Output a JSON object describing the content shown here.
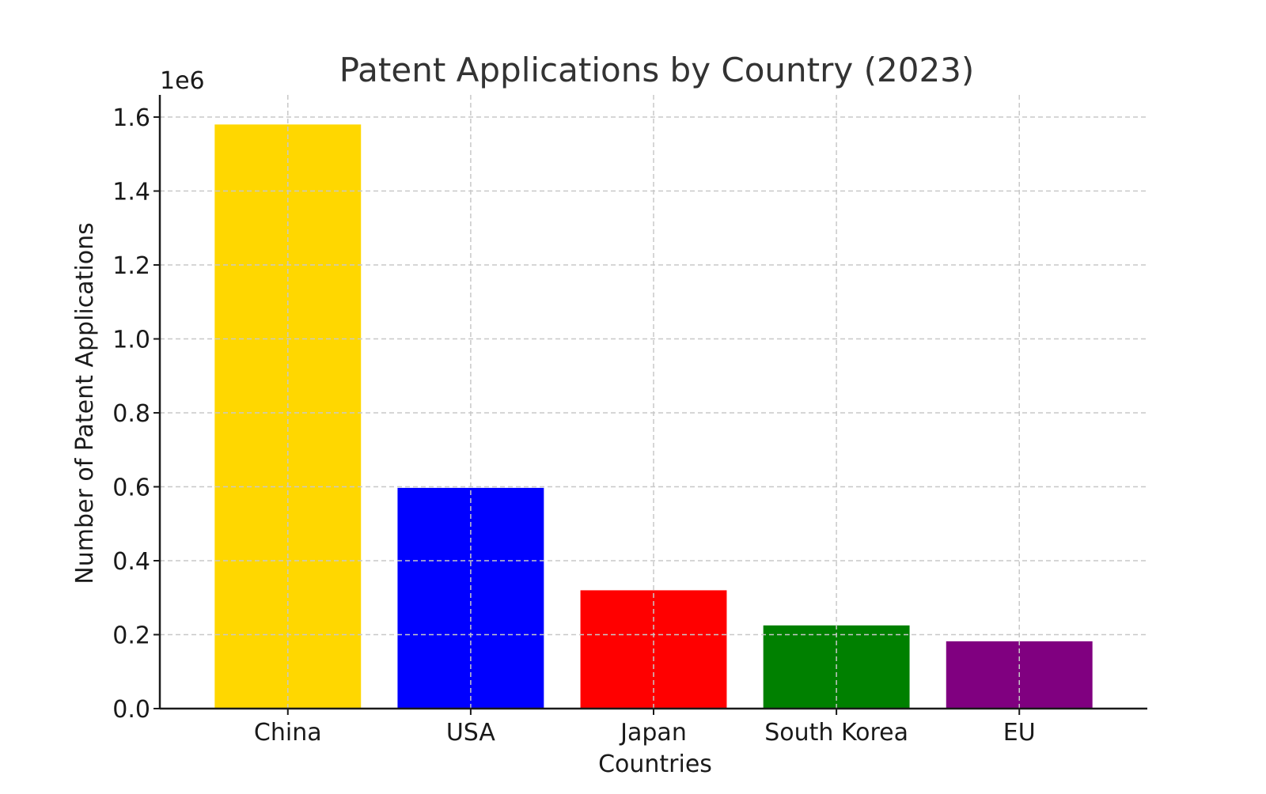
{
  "chart_data": {
    "type": "bar",
    "title": "Patent Applications by Country (2023)",
    "xlabel": "Countries",
    "ylabel": "Number of Patent Applications",
    "y_offset_label": "1e6",
    "categories": [
      "China",
      "USA",
      "Japan",
      "South Korea",
      "EU"
    ],
    "values": [
      1580000,
      597000,
      320000,
      225000,
      182000
    ],
    "colors": [
      "#FFD700",
      "#0000FF",
      "#FF0000",
      "#008000",
      "#800080"
    ],
    "ylim": [
      0,
      1660000
    ],
    "yticks": [
      0,
      200000,
      400000,
      600000,
      800000,
      1000000,
      1200000,
      1400000,
      1600000
    ],
    "ytick_labels": [
      "0.0",
      "0.2",
      "0.4",
      "0.6",
      "0.8",
      "1.0",
      "1.2",
      "1.4",
      "1.6"
    ],
    "grid": true,
    "legend": "none"
  }
}
